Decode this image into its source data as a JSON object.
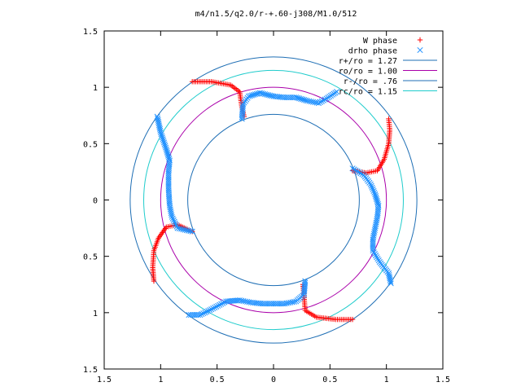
{
  "chart_data": {
    "type": "scatter",
    "title": "m4/n1.5/q2.0/r-+.60-j308/M1.0/512",
    "xlabel": "",
    "ylabel": "",
    "xlim": [
      -1.5,
      1.5
    ],
    "ylim": [
      -1.5,
      1.5
    ],
    "x_ticks": [
      -1.5,
      -1,
      -0.5,
      0,
      0.5,
      1,
      1.5
    ],
    "y_ticks": [
      -1.5,
      -1,
      -0.5,
      0,
      0.5,
      1,
      1.5
    ],
    "x_tick_labels": [
      "1.5",
      "1",
      "0.5",
      "0",
      "0.5",
      "1",
      "1.5"
    ],
    "y_tick_labels": [
      "1.5",
      "1",
      "0.5",
      "0",
      "0.5",
      "1",
      "1.5"
    ],
    "grid": false,
    "legend_position": "top-right",
    "circles": [
      {
        "label": "r+/ro = 1.27",
        "radius": 1.27,
        "color": "#1f6fb5"
      },
      {
        "label": "ro/ro = 1.00",
        "radius": 1.0,
        "color": "#aa00aa"
      },
      {
        "label": "r-/ro = .76",
        "radius": 0.76,
        "color": "#1f6fb5"
      },
      {
        "label": "rc/ro = 1.15",
        "radius": 1.15,
        "color": "#20cccc"
      }
    ],
    "series": [
      {
        "name": "W phase",
        "marker": "+",
        "color": "#ff0000",
        "arms": [
          [
            [
              -0.72,
              1.05
            ],
            [
              -0.55,
              1.05
            ],
            [
              -0.38,
              1.02
            ],
            [
              -0.3,
              0.96
            ],
            [
              -0.28,
              0.82
            ],
            [
              -0.26,
              0.74
            ]
          ],
          [
            [
              1.02,
              0.72
            ],
            [
              1.03,
              0.62
            ],
            [
              1.02,
              0.5
            ],
            [
              0.98,
              0.36
            ],
            [
              0.92,
              0.26
            ],
            [
              0.82,
              0.24
            ],
            [
              0.7,
              0.26
            ]
          ],
          [
            [
              0.7,
              -1.06
            ],
            [
              0.55,
              -1.06
            ],
            [
              0.38,
              -1.04
            ],
            [
              0.28,
              -0.98
            ],
            [
              0.27,
              -0.85
            ],
            [
              0.26,
              -0.75
            ]
          ],
          [
            [
              -1.06,
              -0.72
            ],
            [
              -1.07,
              -0.6
            ],
            [
              -1.06,
              -0.45
            ],
            [
              -1.02,
              -0.34
            ],
            [
              -0.95,
              -0.24
            ],
            [
              -0.85,
              -0.22
            ],
            [
              -0.72,
              -0.28
            ]
          ]
        ]
      },
      {
        "name": "drho phase",
        "marker": "x",
        "color": "#1e90ff",
        "arms": [
          [
            [
              -0.28,
              0.72
            ],
            [
              -0.27,
              0.85
            ],
            [
              -0.22,
              0.92
            ],
            [
              -0.12,
              0.95
            ],
            [
              0.0,
              0.92
            ],
            [
              0.1,
              0.91
            ],
            [
              0.2,
              0.91
            ],
            [
              0.3,
              0.88
            ],
            [
              0.4,
              0.86
            ],
            [
              0.47,
              0.9
            ],
            [
              0.56,
              0.96
            ]
          ],
          [
            [
              -1.03,
              0.74
            ],
            [
              -1.0,
              0.6
            ],
            [
              -0.95,
              0.45
            ],
            [
              -0.92,
              0.35
            ],
            [
              -0.93,
              0.25
            ],
            [
              -0.93,
              0.1
            ],
            [
              -0.92,
              -0.05
            ],
            [
              -0.9,
              -0.15
            ],
            [
              -0.85,
              -0.25
            ],
            [
              -0.72,
              -0.28
            ]
          ],
          [
            [
              0.7,
              0.28
            ],
            [
              0.8,
              0.22
            ],
            [
              0.86,
              0.14
            ],
            [
              0.9,
              0.05
            ],
            [
              0.93,
              -0.05
            ],
            [
              0.92,
              -0.15
            ],
            [
              0.9,
              -0.25
            ],
            [
              0.88,
              -0.35
            ],
            [
              0.88,
              -0.45
            ],
            [
              0.94,
              -0.55
            ],
            [
              1.02,
              -0.65
            ],
            [
              1.04,
              -0.74
            ]
          ],
          [
            [
              0.28,
              -0.72
            ],
            [
              0.27,
              -0.84
            ],
            [
              0.2,
              -0.9
            ],
            [
              0.1,
              -0.92
            ],
            [
              0.0,
              -0.92
            ],
            [
              -0.1,
              -0.92
            ],
            [
              -0.2,
              -0.91
            ],
            [
              -0.3,
              -0.89
            ],
            [
              -0.42,
              -0.9
            ],
            [
              -0.55,
              -0.97
            ],
            [
              -0.65,
              -1.02
            ],
            [
              -0.75,
              -1.02
            ]
          ]
        ]
      }
    ]
  }
}
